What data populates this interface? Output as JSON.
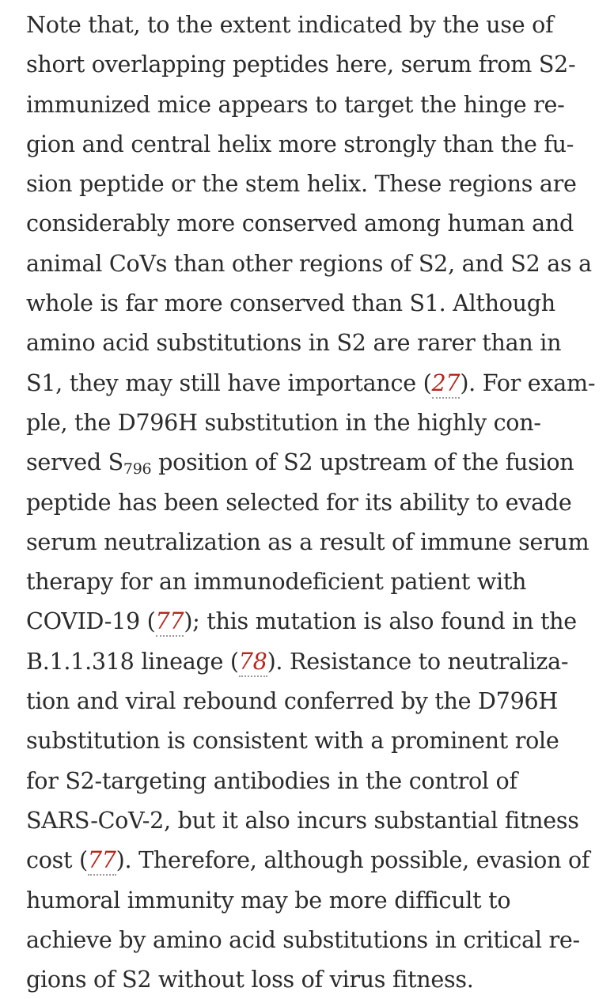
{
  "paragraph": {
    "l1": "Note that, to the extent indicated by the use of",
    "l2": "short overlapping peptides here, serum from S2-",
    "l3": "immunized mice appears to target the hinge re-",
    "l4": "gion and central helix more strongly than the fu-",
    "l5": "sion peptide or the stem helix. These regions are",
    "l6": "considerably more conserved among human and",
    "l7": "animal CoVs than other regions of S2, and S2 as a",
    "l8": "whole is far more conserved than S1. Although",
    "l9": "amino acid substitutions in S2 are rarer than in",
    "l10_a": "S1, they may still have importance (",
    "l10_ref": "27",
    "l10_b": "). For exam-",
    "l11": "ple, the D796H substitution in the highly con-",
    "l12_a": "served S",
    "l12_sub": "796",
    "l12_b": " position of S2 upstream of the fusion",
    "l13": "peptide has been selected for its ability to evade",
    "l14": "serum neutralization as a result of immune serum",
    "l15": "therapy for an immunodeficient patient with",
    "l16_a": "COVID-19 (",
    "l16_ref": "77",
    "l16_b": "); this mutation is also found in the",
    "l17_a": "B.1.1.318 lineage (",
    "l17_ref": "78",
    "l17_b": "). Resistance to neutraliza-",
    "l18": "tion and viral rebound conferred by the D796H",
    "l19": "substitution is consistent with a prominent role",
    "l20": "for S2-targeting antibodies in the control of",
    "l21": "SARS-CoV-2, but it also incurs substantial fitness",
    "l22_a": "cost (",
    "l22_ref": "77",
    "l22_b": "). Therefore, although possible, evasion of",
    "l23": "humoral immunity may be more difficult to",
    "l24": "achieve by amino acid substitutions in critical re-",
    "l25": "gions of S2 without loss of virus fitness."
  },
  "colors": {
    "text": "#2b2b2b",
    "reference_link": "#b5271b"
  }
}
